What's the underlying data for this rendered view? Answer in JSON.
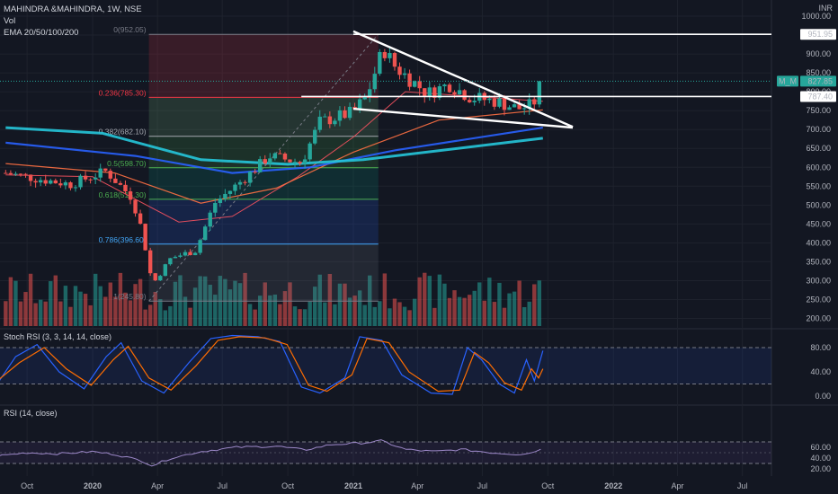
{
  "header": {
    "symbol_line": "MAHINDRA &MAHINDRA, 1W, NSE",
    "vol_label": "Vol",
    "ema_label": "EMA 20/50/100/200",
    "currency": "INR"
  },
  "colors": {
    "background": "#131722",
    "up": "#26a69a",
    "down": "#ef5350",
    "ema20": "#f7525f",
    "ema50": "#ff7043",
    "ema100": "#2962ff",
    "ema200": "#26c6da",
    "trendline": "#ffffff",
    "stoch_k": "#2962ff",
    "stoch_d": "#ff6d00",
    "rsi": "#9c88c8"
  },
  "chart_data": [
    {
      "type": "candlestick",
      "title": "MAHINDRA &MAHINDRA, 1W, NSE",
      "ylim": [
        180,
        1010
      ],
      "y_ticks": [
        200,
        250,
        300,
        350,
        400,
        450,
        500,
        550,
        600,
        650,
        700,
        750,
        800,
        850,
        900,
        950,
        1000
      ],
      "y_tick_labels": [
        "200.00",
        "250.00",
        "300.00",
        "350.00",
        "400.00",
        "450.00",
        "500.00",
        "550.00",
        "600.00",
        "650.00",
        "700.00",
        "750.00",
        "800.00",
        "850.00",
        "900.00",
        "950.00",
        "1000.00"
      ],
      "x_labels": [
        "Oct",
        "2020",
        "Apr",
        "Jul",
        "Oct",
        "2021",
        "Apr",
        "Jul",
        "Oct",
        "2022",
        "Apr",
        "Jul"
      ],
      "close_path": [
        {
          "date": "2019-09-01",
          "price": 585
        },
        {
          "date": "2019-10-15",
          "price": 570
        },
        {
          "date": "2019-12-01",
          "price": 555
        },
        {
          "date": "2020-01-20",
          "price": 590
        },
        {
          "date": "2020-02-25",
          "price": 520
        },
        {
          "date": "2020-03-10",
          "price": 435
        },
        {
          "date": "2020-03-25",
          "price": 290
        },
        {
          "date": "2020-04-20",
          "price": 360
        },
        {
          "date": "2020-05-25",
          "price": 380
        },
        {
          "date": "2020-06-20",
          "price": 505
        },
        {
          "date": "2020-08-01",
          "price": 570
        },
        {
          "date": "2020-09-05",
          "price": 630
        },
        {
          "date": "2020-10-20",
          "price": 612
        },
        {
          "date": "2020-11-15",
          "price": 720
        },
        {
          "date": "2020-12-31",
          "price": 745
        },
        {
          "date": "2021-01-20",
          "price": 790
        },
        {
          "date": "2021-02-12",
          "price": 915
        },
        {
          "date": "2021-03-01",
          "price": 865
        },
        {
          "date": "2021-04-15",
          "price": 795
        },
        {
          "date": "2021-05-15",
          "price": 820
        },
        {
          "date": "2021-06-15",
          "price": 785
        },
        {
          "date": "2021-07-20",
          "price": 775
        },
        {
          "date": "2021-08-20",
          "price": 755
        },
        {
          "date": "2021-09-10",
          "price": 765
        },
        {
          "date": "2021-09-24",
          "price": 828
        }
      ],
      "ema_series": [
        {
          "name": "EMA 20",
          "points": [
            {
              "date": "2019-09-01",
              "price": 580
            },
            {
              "date": "2020-01-01",
              "price": 575
            },
            {
              "date": "2020-05-01",
              "price": 455
            },
            {
              "date": "2020-07-15",
              "price": 470
            },
            {
              "date": "2020-10-15",
              "price": 575
            },
            {
              "date": "2021-01-01",
              "price": 680
            },
            {
              "date": "2021-03-15",
              "price": 800
            },
            {
              "date": "2021-09-24",
              "price": 775
            }
          ]
        },
        {
          "name": "EMA 50",
          "points": [
            {
              "date": "2019-09-01",
              "price": 610
            },
            {
              "date": "2020-02-01",
              "price": 585
            },
            {
              "date": "2020-06-01",
              "price": 505
            },
            {
              "date": "2020-09-15",
              "price": 545
            },
            {
              "date": "2021-01-01",
              "price": 640
            },
            {
              "date": "2021-05-01",
              "price": 725
            },
            {
              "date": "2021-09-24",
              "price": 752
            }
          ]
        },
        {
          "name": "EMA 100",
          "points": [
            {
              "date": "2019-09-01",
              "price": 665
            },
            {
              "date": "2020-03-01",
              "price": 630
            },
            {
              "date": "2020-07-15",
              "price": 585
            },
            {
              "date": "2020-11-01",
              "price": 600
            },
            {
              "date": "2021-03-01",
              "price": 645
            },
            {
              "date": "2021-09-24",
              "price": 705
            }
          ]
        },
        {
          "name": "EMA 200",
          "points": [
            {
              "date": "2019-09-01",
              "price": 705
            },
            {
              "date": "2020-01-15",
              "price": 690
            },
            {
              "date": "2020-06-01",
              "price": 620
            },
            {
              "date": "2020-10-01",
              "price": 608
            },
            {
              "date": "2021-01-15",
              "price": 620
            },
            {
              "date": "2021-09-24",
              "price": 677
            }
          ]
        }
      ],
      "fibonacci": {
        "start_date": "2020-03-20",
        "end_date": "2021-02-05",
        "levels": [
          {
            "ratio": "0",
            "price": 952.05,
            "label": "0(952.05)",
            "color": "#787b86"
          },
          {
            "ratio": "0.236",
            "price": 785.3,
            "label": "0.236(785.30)",
            "color": "#f23645"
          },
          {
            "ratio": "0.382",
            "price": 682.1,
            "label": "0.382(682.10)",
            "color": "#a5a8b0"
          },
          {
            "ratio": "0.5",
            "price": 598.7,
            "label": "0.5(598.70)",
            "color": "#4caf50"
          },
          {
            "ratio": "0.618",
            "price": 515.3,
            "label": "0.618(515.30)",
            "color": "#4caf50"
          },
          {
            "ratio": "0.786",
            "price": 396.6,
            "label": "0.786(396.60)",
            "color": "#42a5f5"
          },
          {
            "ratio": "1",
            "price": 245.8,
            "label": "1(245.80)",
            "color": "#787b86"
          }
        ]
      },
      "trendlines": [
        {
          "name": "upper-wedge",
          "from": {
            "date": "2021-01-01",
            "price": 960
          },
          "to": {
            "date": "2021-11-05",
            "price": 707
          }
        },
        {
          "name": "lower-wedge",
          "from": {
            "date": "2021-01-01",
            "price": 755
          },
          "to": {
            "date": "2021-11-05",
            "price": 705
          }
        }
      ],
      "hlines": [
        {
          "name": "resistance-951",
          "price": 951.95,
          "from_date": "2021-01-01",
          "label": "951.95"
        },
        {
          "name": "support-787",
          "price": 787.4,
          "from_date": "2020-10-20",
          "label": "787.40"
        }
      ],
      "last_price": {
        "price": 827.85,
        "label": "827.85",
        "symbol": "M_M"
      }
    },
    {
      "type": "line",
      "title": "Stoch RSI (3, 3, 14, 14, close)",
      "ylim": [
        -5,
        110
      ],
      "y_ticks": [
        0,
        40,
        80
      ],
      "y_tick_labels": [
        "0.00",
        "40.00",
        "80.00"
      ],
      "bands": [
        20,
        80
      ],
      "series": [
        {
          "name": "%K",
          "points": [
            {
              "date": "2019-08-20",
              "v": 20
            },
            {
              "date": "2019-09-15",
              "v": 65
            },
            {
              "date": "2019-10-15",
              "v": 85
            },
            {
              "date": "2019-11-15",
              "v": 40
            },
            {
              "date": "2019-12-20",
              "v": 12
            },
            {
              "date": "2020-01-20",
              "v": 65
            },
            {
              "date": "2020-02-10",
              "v": 88
            },
            {
              "date": "2020-03-10",
              "v": 25
            },
            {
              "date": "2020-04-10",
              "v": 5
            },
            {
              "date": "2020-05-15",
              "v": 55
            },
            {
              "date": "2020-06-15",
              "v": 95
            },
            {
              "date": "2020-07-15",
              "v": 100
            },
            {
              "date": "2020-08-20",
              "v": 98
            },
            {
              "date": "2020-09-20",
              "v": 90
            },
            {
              "date": "2020-10-20",
              "v": 15
            },
            {
              "date": "2020-11-15",
              "v": 5
            },
            {
              "date": "2020-12-20",
              "v": 30
            },
            {
              "date": "2021-01-10",
              "v": 98
            },
            {
              "date": "2021-02-10",
              "v": 92
            },
            {
              "date": "2021-03-10",
              "v": 35
            },
            {
              "date": "2021-04-20",
              "v": 5
            },
            {
              "date": "2021-05-20",
              "v": 3
            },
            {
              "date": "2021-06-10",
              "v": 80
            },
            {
              "date": "2021-06-30",
              "v": 60
            },
            {
              "date": "2021-07-25",
              "v": 20
            },
            {
              "date": "2021-08-15",
              "v": 5
            },
            {
              "date": "2021-09-01",
              "v": 60
            },
            {
              "date": "2021-09-12",
              "v": 25
            },
            {
              "date": "2021-09-24",
              "v": 75
            }
          ]
        },
        {
          "name": "%D",
          "points": [
            {
              "date": "2019-08-20",
              "v": 25
            },
            {
              "date": "2019-09-20",
              "v": 55
            },
            {
              "date": "2019-10-25",
              "v": 80
            },
            {
              "date": "2019-11-25",
              "v": 45
            },
            {
              "date": "2019-12-30",
              "v": 18
            },
            {
              "date": "2020-01-30",
              "v": 60
            },
            {
              "date": "2020-02-20",
              "v": 82
            },
            {
              "date": "2020-03-20",
              "v": 30
            },
            {
              "date": "2020-04-20",
              "v": 10
            },
            {
              "date": "2020-05-25",
              "v": 50
            },
            {
              "date": "2020-06-25",
              "v": 92
            },
            {
              "date": "2020-07-25",
              "v": 98
            },
            {
              "date": "2020-08-30",
              "v": 96
            },
            {
              "date": "2020-09-30",
              "v": 85
            },
            {
              "date": "2020-10-30",
              "v": 18
            },
            {
              "date": "2020-11-25",
              "v": 8
            },
            {
              "date": "2020-12-30",
              "v": 35
            },
            {
              "date": "2021-01-20",
              "v": 95
            },
            {
              "date": "2021-02-20",
              "v": 88
            },
            {
              "date": "2021-03-20",
              "v": 40
            },
            {
              "date": "2021-04-30",
              "v": 8
            },
            {
              "date": "2021-05-30",
              "v": 10
            },
            {
              "date": "2021-06-20",
              "v": 72
            },
            {
              "date": "2021-07-10",
              "v": 55
            },
            {
              "date": "2021-08-01",
              "v": 22
            },
            {
              "date": "2021-08-25",
              "v": 10
            },
            {
              "date": "2021-09-08",
              "v": 45
            },
            {
              "date": "2021-09-18",
              "v": 30
            },
            {
              "date": "2021-09-24",
              "v": 45
            }
          ]
        }
      ]
    },
    {
      "type": "line",
      "title": "RSI (14, close)",
      "ylim": [
        15,
        80
      ],
      "y_ticks": [
        20,
        40,
        60
      ],
      "y_tick_labels": [
        "20.00",
        "40.00",
        "60.00"
      ],
      "bands": [
        30,
        70
      ],
      "series": [
        {
          "name": "RSI",
          "points": [
            {
              "date": "2019-08-20",
              "v": 44
            },
            {
              "date": "2019-10-01",
              "v": 50
            },
            {
              "date": "2019-11-15",
              "v": 48
            },
            {
              "date": "2019-12-31",
              "v": 52
            },
            {
              "date": "2020-02-01",
              "v": 47
            },
            {
              "date": "2020-03-10",
              "v": 35
            },
            {
              "date": "2020-03-25",
              "v": 26
            },
            {
              "date": "2020-04-20",
              "v": 40
            },
            {
              "date": "2020-06-01",
              "v": 52
            },
            {
              "date": "2020-07-20",
              "v": 60
            },
            {
              "date": "2020-09-15",
              "v": 62
            },
            {
              "date": "2020-10-25",
              "v": 55
            },
            {
              "date": "2020-12-01",
              "v": 65
            },
            {
              "date": "2021-01-15",
              "v": 68
            },
            {
              "date": "2021-02-10",
              "v": 72
            },
            {
              "date": "2021-03-15",
              "v": 56
            },
            {
              "date": "2021-04-25",
              "v": 52
            },
            {
              "date": "2021-06-01",
              "v": 56
            },
            {
              "date": "2021-07-15",
              "v": 50
            },
            {
              "date": "2021-08-20",
              "v": 47
            },
            {
              "date": "2021-09-10",
              "v": 50
            },
            {
              "date": "2021-09-24",
              "v": 60
            }
          ]
        }
      ]
    }
  ]
}
